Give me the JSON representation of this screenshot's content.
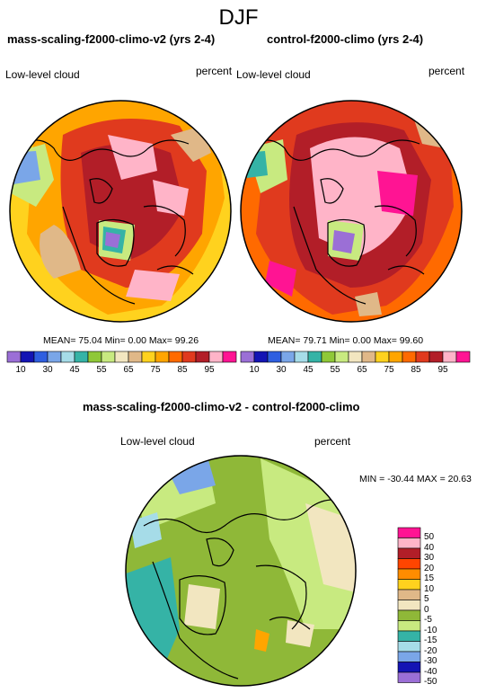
{
  "title": "DJF",
  "panels": [
    {
      "title": "mass-scaling-f2000-climo-v2 (yrs 2-4)",
      "left_label": "Low-level cloud",
      "right_label": "percent",
      "stats": "MEAN= 75.04  Min=  0.00  Max= 99.26"
    },
    {
      "title": "control-f2000-climo (yrs 2-4)",
      "left_label": "Low-level cloud",
      "right_label": "percent",
      "stats": "MEAN= 79.71  Min=  0.00  Max= 99.60"
    }
  ],
  "shared_colorbar": {
    "colors": [
      "#9b6fd6",
      "#1414b4",
      "#2f5fe0",
      "#7aa6e8",
      "#a6dce8",
      "#35b3a6",
      "#8fc838",
      "#c8ea80",
      "#f2e6c0",
      "#e0b888",
      "#ffd21e",
      "#ffa500",
      "#ff6a00",
      "#e03a1e",
      "#b21e28",
      "#ffb4c8",
      "#ff1493"
    ],
    "tick_labels": [
      "10",
      "30",
      "45",
      "55",
      "65",
      "75",
      "85",
      "95"
    ]
  },
  "diff_panel": {
    "title": "mass-scaling-f2000-climo-v2 - control-f2000-climo",
    "left_label": "Low-level cloud",
    "right_label": "percent",
    "stats": "MIN = -30.44 MAX =  20.63",
    "colorbar": {
      "colors": [
        "#ff1493",
        "#ffb4c8",
        "#b21e28",
        "#ff4500",
        "#ff8c00",
        "#ffd21e",
        "#e0b888",
        "#f2e6c0",
        "#8fb838",
        "#c8ea80",
        "#35b3a6",
        "#a6dce8",
        "#7aa6e8",
        "#1414b4",
        "#9b6fd6"
      ],
      "tick_labels": [
        "50",
        "40",
        "30",
        "20",
        "15",
        "10",
        "5",
        "0",
        "-5",
        "-10",
        "-15",
        "-20",
        "-30",
        "-40",
        "-50"
      ]
    }
  }
}
